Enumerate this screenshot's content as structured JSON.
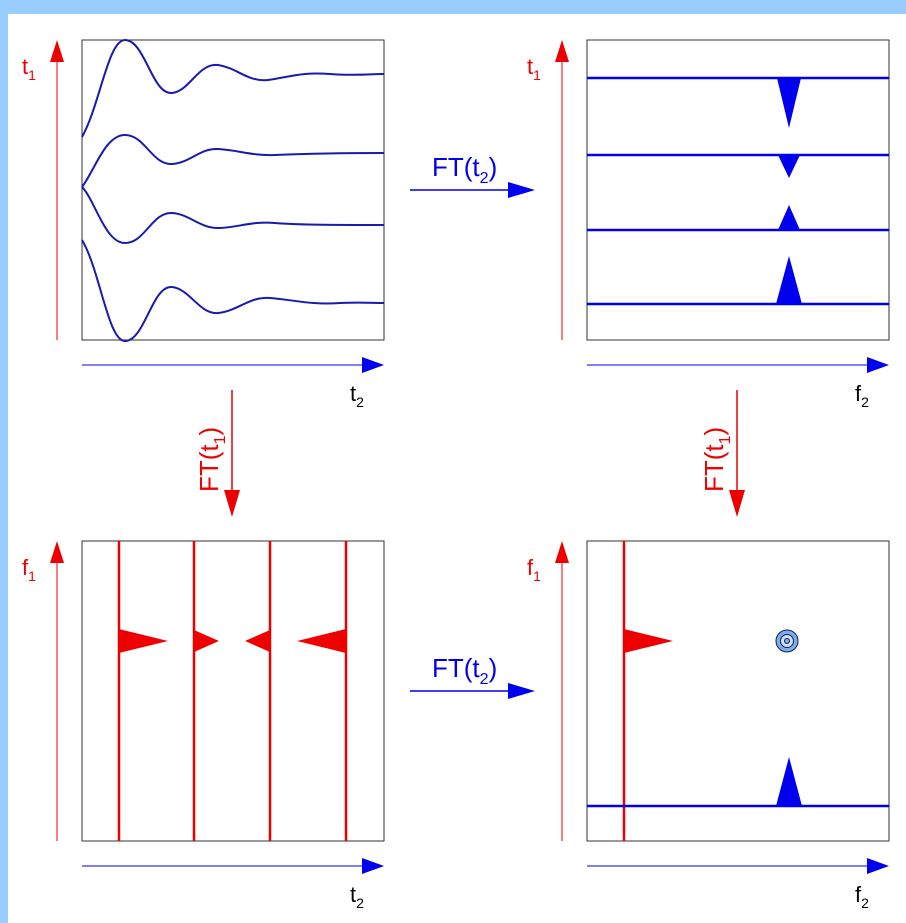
{
  "colors": {
    "background": "#99ccff",
    "canvas": "#ffffff",
    "time_signal": "#1a1ab0",
    "blue": "#0000ee",
    "red": "#ee0000",
    "peak_fill": "#7aaee6"
  },
  "panels": [
    {
      "id": "top-left",
      "y_axis": {
        "main": "t",
        "sub": "1"
      },
      "x_axis": {
        "main": "t",
        "sub": "2"
      }
    },
    {
      "id": "top-right",
      "y_axis": {
        "main": "t",
        "sub": "1"
      },
      "x_axis": {
        "main": "f",
        "sub": "2"
      }
    },
    {
      "id": "bottom-left",
      "y_axis": {
        "main": "f",
        "sub": "1"
      },
      "x_axis": {
        "main": "t",
        "sub": "2"
      }
    },
    {
      "id": "bottom-right",
      "y_axis": {
        "main": "f",
        "sub": "1"
      },
      "x_axis": {
        "main": "f",
        "sub": "2"
      }
    }
  ],
  "transforms": [
    {
      "id": "ft-t2-top",
      "main": "FT(t",
      "sub": "2",
      "close": ")"
    },
    {
      "id": "ft-t2-bottom",
      "main": "FT(t",
      "sub": "2",
      "close": ")"
    },
    {
      "id": "ft-t1-left",
      "main": "FT(t",
      "sub": "1",
      "close": ")"
    },
    {
      "id": "ft-t1-right",
      "main": "FT(t",
      "sub": "1",
      "close": ")"
    }
  ]
}
